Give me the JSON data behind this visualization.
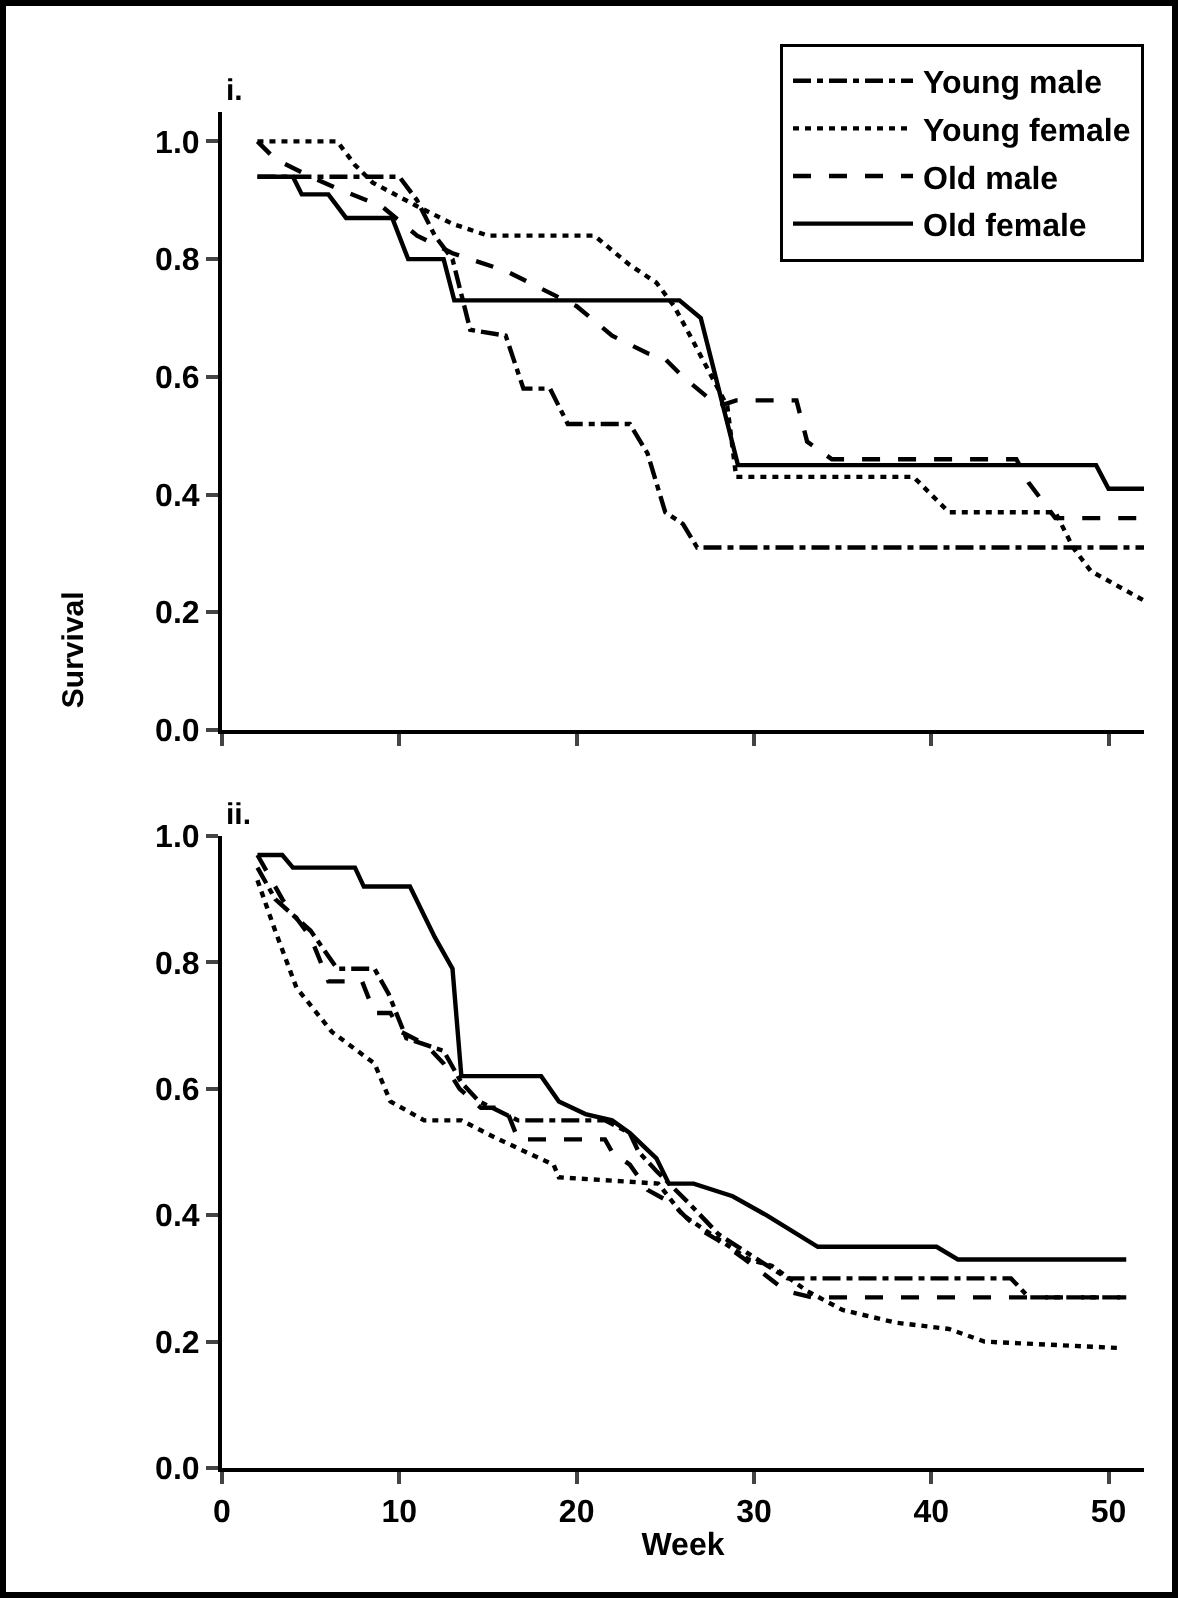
{
  "chart_data": [
    {
      "type": "line",
      "ylabel": "Survival",
      "annotations": [
        "i."
      ],
      "legend": "top right",
      "tick_labels": "y",
      "grid": false,
      "xlim": [
        0,
        52
      ],
      "xticks": [
        {
          "value": 0,
          "label": null
        },
        {
          "value": 10,
          "label": null
        },
        {
          "value": 20,
          "label": null
        },
        {
          "value": 30,
          "label": null
        },
        {
          "value": 40,
          "label": null
        },
        {
          "value": 50,
          "label": null
        }
      ],
      "ylim": [
        0,
        1.05
      ],
      "yticks": [
        {
          "value": 0,
          "label": "0.0"
        },
        {
          "value": 0.2,
          "label": "0.2"
        },
        {
          "value": 0.4,
          "label": "0.4"
        },
        {
          "value": 0.6,
          "label": "0.6"
        },
        {
          "value": 0.8,
          "label": "0.8"
        },
        {
          "value": 1,
          "label": "1.0"
        }
      ],
      "series": [
        {
          "name": "Young male",
          "color": "#000000",
          "line_style": "dashdot",
          "x": [
            2,
            10,
            11,
            12,
            13,
            14,
            16,
            17,
            18.5,
            19.5,
            23,
            24,
            25,
            26,
            26.8,
            52
          ],
          "values": [
            0.94,
            0.94,
            0.9,
            0.84,
            0.8,
            0.68,
            0.67,
            0.58,
            0.58,
            0.52,
            0.52,
            0.47,
            0.37,
            0.35,
            0.31,
            0.31
          ]
        },
        {
          "name": "Young female",
          "color": "#000000",
          "line_style": "dotted",
          "x": [
            2,
            6.5,
            7.5,
            8.5,
            11,
            13,
            15,
            17,
            21,
            23,
            24.5,
            25.5,
            26.4,
            28.5,
            29,
            39,
            40,
            41,
            47,
            48,
            49,
            52
          ],
          "values": [
            1.0,
            1.0,
            0.96,
            0.93,
            0.89,
            0.86,
            0.84,
            0.84,
            0.84,
            0.79,
            0.76,
            0.72,
            0.67,
            0.55,
            0.43,
            0.43,
            0.4,
            0.37,
            0.37,
            0.31,
            0.27,
            0.22
          ]
        },
        {
          "name": "Old male",
          "color": "#000000",
          "line_style": "dashed",
          "x": [
            2,
            3,
            5,
            6.5,
            9,
            11,
            13,
            14,
            16,
            18,
            20,
            22,
            24,
            25,
            26,
            28,
            29,
            32.4,
            33,
            34.4,
            44.8,
            45.5,
            47,
            52
          ],
          "values": [
            1.0,
            0.97,
            0.94,
            0.92,
            0.89,
            0.84,
            0.81,
            0.8,
            0.78,
            0.75,
            0.72,
            0.67,
            0.64,
            0.63,
            0.6,
            0.55,
            0.56,
            0.56,
            0.49,
            0.46,
            0.46,
            0.42,
            0.36,
            0.36
          ]
        },
        {
          "name": "Old female",
          "color": "#000000",
          "line_style": "solid",
          "x": [
            2,
            4,
            4.5,
            6,
            7,
            9.6,
            10.5,
            12.5,
            13.1,
            25.8,
            27,
            29.1,
            49.3,
            50,
            52
          ],
          "values": [
            0.94,
            0.94,
            0.91,
            0.91,
            0.87,
            0.87,
            0.8,
            0.8,
            0.73,
            0.73,
            0.7,
            0.45,
            0.45,
            0.41,
            0.41
          ]
        }
      ]
    },
    {
      "type": "line",
      "xlabel": "Week",
      "annotations": [
        "ii."
      ],
      "grid": false,
      "xlim": [
        0,
        52
      ],
      "xticks": [
        0,
        10,
        20,
        30,
        40,
        50
      ],
      "ylim": [
        0,
        1.0
      ],
      "yticks": [
        {
          "value": 0,
          "label": "0.0"
        },
        {
          "value": 0.2,
          "label": "0.2"
        },
        {
          "value": 0.4,
          "label": "0.4"
        },
        {
          "value": 0.6,
          "label": "0.6"
        },
        {
          "value": 0.8,
          "label": "0.8"
        },
        {
          "value": 1,
          "label": "1.0"
        }
      ],
      "series": [
        {
          "color": "#000000",
          "line_style": "dashdot",
          "x": [
            2,
            3,
            5,
            6.5,
            8.6,
            9.4,
            10.4,
            12.5,
            13.5,
            14.5,
            16.7,
            21.6,
            23,
            23.5,
            24.5,
            26.3,
            28,
            30.2,
            31.9,
            44.5,
            45.5,
            51
          ],
          "values": [
            0.95,
            0.9,
            0.85,
            0.79,
            0.79,
            0.75,
            0.68,
            0.66,
            0.61,
            0.58,
            0.55,
            0.55,
            0.53,
            0.5,
            0.47,
            0.42,
            0.37,
            0.33,
            0.3,
            0.3,
            0.27,
            0.27
          ]
        },
        {
          "color": "#000000",
          "line_style": "dotted",
          "x": [
            2,
            3,
            4.2,
            6.2,
            8.6,
            9.5,
            11.4,
            13.5,
            15.6,
            18.7,
            19,
            24.6,
            26,
            29.7,
            31,
            33,
            35,
            38,
            41,
            43,
            50.5
          ],
          "values": [
            0.93,
            0.85,
            0.76,
            0.69,
            0.64,
            0.58,
            0.55,
            0.55,
            0.52,
            0.48,
            0.46,
            0.45,
            0.4,
            0.33,
            0.32,
            0.28,
            0.25,
            0.23,
            0.22,
            0.2,
            0.19
          ]
        },
        {
          "color": "#000000",
          "line_style": "dashed",
          "x": [
            2,
            3.4,
            5,
            6,
            7.9,
            8.6,
            9.5,
            10.1,
            11.5,
            12.5,
            13.4,
            14.6,
            16,
            16.7,
            21.6,
            22,
            23,
            24,
            25.3,
            26.8,
            28,
            29.5,
            31.8,
            33.3,
            51
          ],
          "values": [
            0.97,
            0.9,
            0.84,
            0.77,
            0.77,
            0.72,
            0.72,
            0.69,
            0.67,
            0.64,
            0.6,
            0.57,
            0.57,
            0.52,
            0.52,
            0.5,
            0.48,
            0.44,
            0.42,
            0.38,
            0.36,
            0.33,
            0.28,
            0.27,
            0.27
          ]
        },
        {
          "color": "#000000",
          "line_style": "solid",
          "x": [
            2,
            3.4,
            4,
            7.5,
            8,
            10.6,
            12,
            13,
            13.5,
            18,
            19,
            20.5,
            22,
            23,
            24.5,
            25.2,
            26.6,
            28.8,
            30.7,
            33.6,
            40.3,
            41.5,
            51
          ],
          "values": [
            0.97,
            0.97,
            0.95,
            0.95,
            0.92,
            0.92,
            0.84,
            0.79,
            0.62,
            0.62,
            0.58,
            0.56,
            0.55,
            0.53,
            0.49,
            0.45,
            0.45,
            0.43,
            0.4,
            0.35,
            0.35,
            0.33,
            0.33
          ]
        }
      ]
    }
  ]
}
